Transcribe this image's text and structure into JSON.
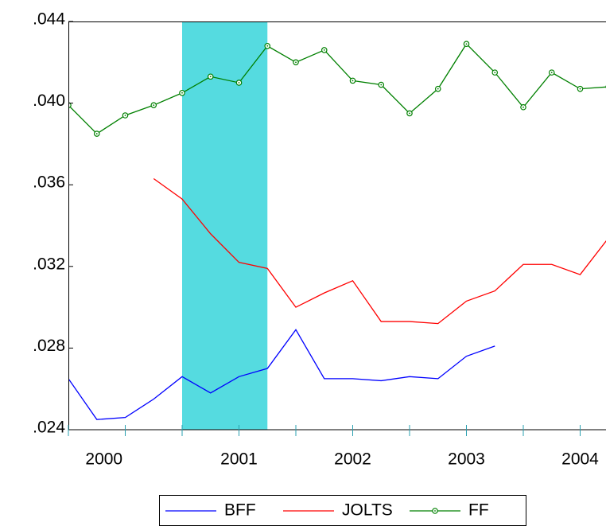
{
  "chart_data": {
    "type": "line",
    "categories": [
      null,
      "2000",
      null,
      null,
      null,
      null,
      "2001",
      null,
      null,
      null,
      "2002",
      null,
      null,
      null,
      "2003",
      null,
      null,
      null,
      "2004",
      null
    ],
    "shade": [
      4,
      7
    ],
    "shade_color": "#55dbe0",
    "ylim": [
      0.024,
      0.044
    ],
    "yticks": [
      {
        "value": 0.024,
        "label": ".024"
      },
      {
        "value": 0.028,
        "label": ".028"
      },
      {
        "value": 0.032,
        "label": ".032"
      },
      {
        "value": 0.036,
        "label": ".036"
      },
      {
        "value": 0.04,
        "label": ".040"
      },
      {
        "value": 0.044,
        "label": ".044"
      }
    ],
    "series": [
      {
        "name": "BFF",
        "color": "#0000ff",
        "values": [
          0.0265,
          0.0245,
          0.0246,
          0.0255,
          0.0266,
          0.0258,
          0.0266,
          0.027,
          0.0289,
          0.0265,
          0.0265,
          0.0264,
          0.0266,
          0.0265,
          0.0276,
          0.0281,
          null,
          null,
          null,
          null
        ]
      },
      {
        "name": "JOLTS",
        "color": "#ff0000",
        "values": [
          null,
          null,
          null,
          0.0363,
          0.0353,
          0.0336,
          0.0322,
          0.0319,
          0.03,
          0.0307,
          0.0313,
          0.0293,
          0.0293,
          0.0292,
          0.0303,
          0.0308,
          0.0321,
          0.0321,
          0.0316,
          0.0334
        ]
      },
      {
        "name": "FF",
        "color": "#008000",
        "marker": "circle",
        "values": [
          0.0399,
          0.0385,
          0.0394,
          0.0399,
          0.0405,
          0.0413,
          0.041,
          0.0428,
          0.042,
          0.0426,
          0.0411,
          0.0409,
          0.0395,
          0.0407,
          0.0429,
          0.0415,
          0.0398,
          0.0415,
          0.0407,
          0.0408
        ]
      }
    ]
  }
}
